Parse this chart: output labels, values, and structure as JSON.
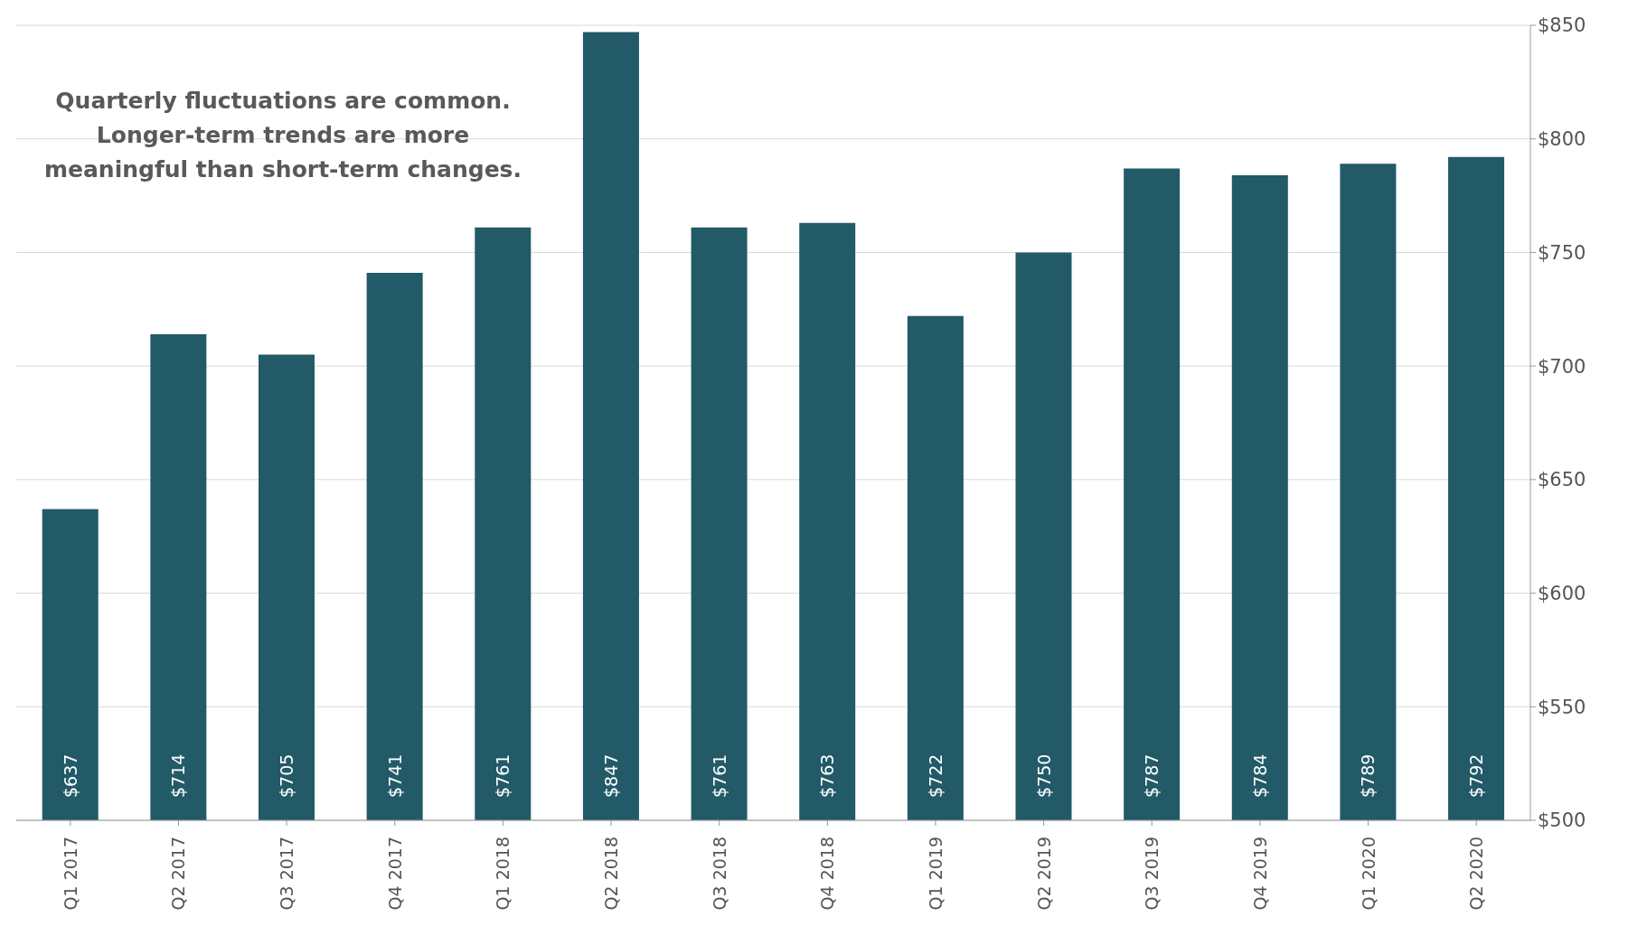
{
  "chart_data": {
    "type": "bar",
    "categories": [
      "Q1 2017",
      "Q2 2017",
      "Q3 2017",
      "Q4 2017",
      "Q1 2018",
      "Q2 2018",
      "Q3 2018",
      "Q4 2018",
      "Q1 2019",
      "Q2 2019",
      "Q3 2019",
      "Q4 2019",
      "Q1 2020",
      "Q2 2020"
    ],
    "values": [
      637,
      714,
      705,
      741,
      761,
      847,
      761,
      763,
      722,
      750,
      787,
      784,
      789,
      792
    ],
    "value_labels": [
      "$637",
      "$714",
      "$705",
      "$741",
      "$761",
      "$847",
      "$761",
      "$763",
      "$722",
      "$750",
      "$787",
      "$784",
      "$789",
      "$792"
    ],
    "color": "#225a68",
    "ylim": [
      500,
      850
    ],
    "yticks": [
      {
        "value": 500,
        "label": "$500"
      },
      {
        "value": 550,
        "label": "$550"
      },
      {
        "value": 600,
        "label": "$600"
      },
      {
        "value": 650,
        "label": "$650"
      },
      {
        "value": 700,
        "label": "$700"
      },
      {
        "value": 750,
        "label": "$750"
      },
      {
        "value": 800,
        "label": "$800"
      },
      {
        "value": 850,
        "label": "$850"
      }
    ],
    "grid": "y",
    "legend": false,
    "annotations": [
      "Quarterly fluctuations are common. Longer-term trends are more meaningful than short-term changes."
    ]
  }
}
